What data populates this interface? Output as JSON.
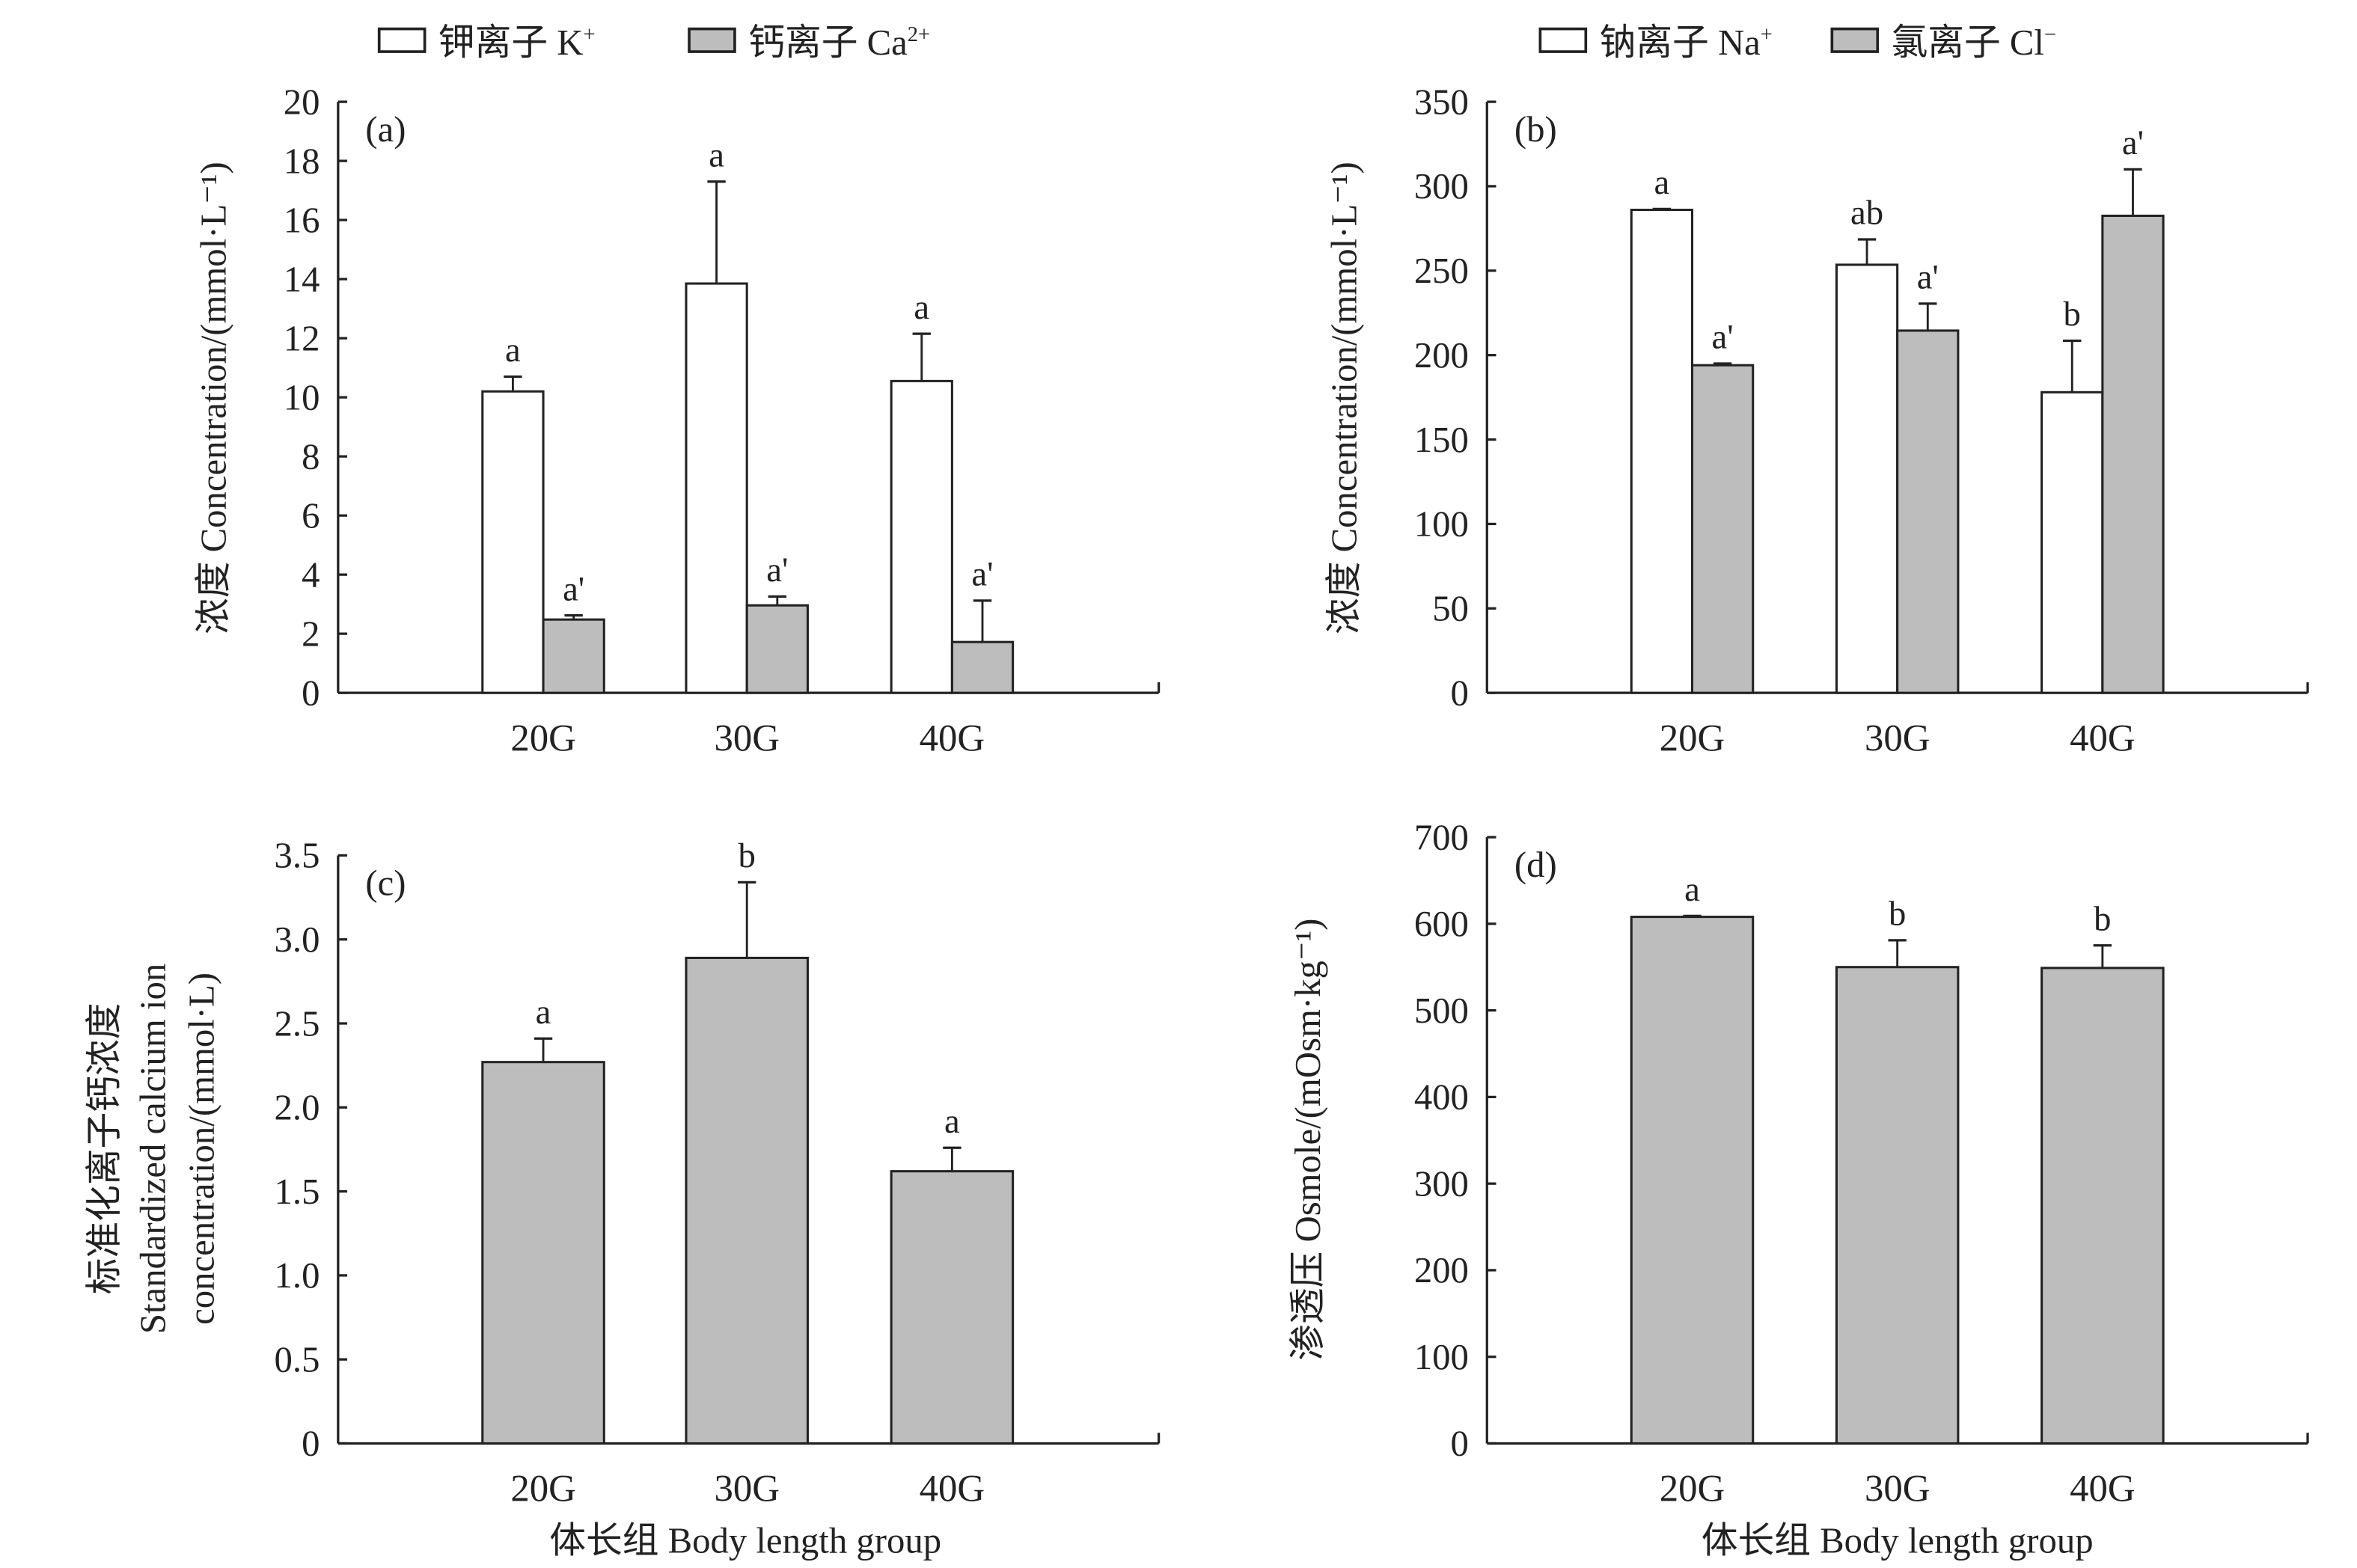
{
  "chart_data": [
    {
      "id": "a",
      "type": "bar",
      "panel_label": "(a)",
      "title": "",
      "categories": [
        "20G",
        "30G",
        "40G"
      ],
      "series": [
        {
          "name": "钾离子 K⁺",
          "fill": "#ffffff",
          "values": [
            10.2,
            13.85,
            10.55
          ],
          "error": [
            0.5,
            3.45,
            1.6
          ],
          "significance": [
            "a",
            "a",
            "a"
          ]
        },
        {
          "name": "钙离子 Ca²⁺",
          "fill": "#bdbdbd",
          "values": [
            2.48,
            2.96,
            1.72
          ],
          "error": [
            0.14,
            0.3,
            1.4
          ],
          "significance": [
            "a'",
            "a'",
            "a'"
          ]
        }
      ],
      "ylabel": "浓度 Concentration/(mmol·L⁻¹)",
      "xlabel": "",
      "ylim": [
        0,
        20
      ],
      "yticks": [
        "0",
        "2",
        "4",
        "6",
        "8",
        "10",
        "12",
        "14",
        "16",
        "18",
        "20"
      ],
      "grid": false,
      "legend": "top"
    },
    {
      "id": "b",
      "type": "bar",
      "panel_label": "(b)",
      "title": "",
      "categories": [
        "20G",
        "30G",
        "40G"
      ],
      "series": [
        {
          "name": "钠离子 Na⁺",
          "fill": "#ffffff",
          "values": [
            286,
            253.5,
            178
          ],
          "error": [
            0.5,
            15,
            30.5
          ],
          "significance": [
            "a",
            "ab",
            "b"
          ]
        },
        {
          "name": "氯离子 Cl⁻",
          "fill": "#bdbdbd",
          "values": [
            194,
            214.5,
            282.5
          ],
          "error": [
            1,
            16,
            27.5
          ],
          "significance": [
            "a'",
            "a'",
            "a'"
          ]
        }
      ],
      "ylabel": "浓度 Concentration/(mmol·L⁻¹)",
      "xlabel": "",
      "ylim": [
        0,
        350
      ],
      "yticks": [
        "0",
        "50",
        "100",
        "150",
        "200",
        "250",
        "300",
        "350"
      ],
      "grid": false,
      "legend": "top"
    },
    {
      "id": "c",
      "type": "bar",
      "panel_label": "(c)",
      "title": "",
      "categories": [
        "20G",
        "30G",
        "40G"
      ],
      "series": [
        {
          "name": "标准化离子钙浓度",
          "fill": "#bdbdbd",
          "values": [
            2.27,
            2.89,
            1.62
          ],
          "error": [
            0.14,
            0.45,
            0.14
          ],
          "significance": [
            "a",
            "b",
            "a"
          ]
        }
      ],
      "ylabel_lines": [
        "标准化离子钙浓度",
        "Standardized calcium ion",
        "concentration/(mmol·L)"
      ],
      "xlabel": "体长组 Body length group",
      "ylim": [
        0,
        3.5
      ],
      "yticks": [
        "0",
        "0.5",
        "1.0",
        "1.5",
        "2.0",
        "2.5",
        "3.0",
        "3.5"
      ],
      "grid": false,
      "legend": "none"
    },
    {
      "id": "d",
      "type": "bar",
      "panel_label": "(d)",
      "title": "",
      "categories": [
        "20G",
        "30G",
        "40G"
      ],
      "series": [
        {
          "name": "渗透压",
          "fill": "#bdbdbd",
          "values": [
            608,
            550,
            549
          ],
          "error": [
            1,
            31,
            26
          ],
          "significance": [
            "a",
            "b",
            "b"
          ]
        }
      ],
      "ylabel": "渗透压 Osmole/(mOsm·kg⁻¹)",
      "xlabel": "体长组 Body length group",
      "ylim": [
        0,
        700
      ],
      "yticks": [
        "0",
        "100",
        "200",
        "300",
        "400",
        "500",
        "600",
        "700"
      ],
      "grid": false,
      "legend": "none"
    }
  ],
  "legends": {
    "top_left": [
      {
        "label": "钾离子 K",
        "sup": "+",
        "fill": "#ffffff"
      },
      {
        "label": "钙离子 Ca",
        "sup": "2+",
        "fill": "#bdbdbd"
      }
    ],
    "top_right": [
      {
        "label": "钠离子 Na",
        "sup": "+",
        "fill": "#ffffff"
      },
      {
        "label": "氯离子 Cl",
        "sup": "−",
        "fill": "#bdbdbd"
      }
    ]
  },
  "colors": {
    "axis": "#222222",
    "bar_gray": "#bdbdbd",
    "bar_white": "#ffffff"
  }
}
